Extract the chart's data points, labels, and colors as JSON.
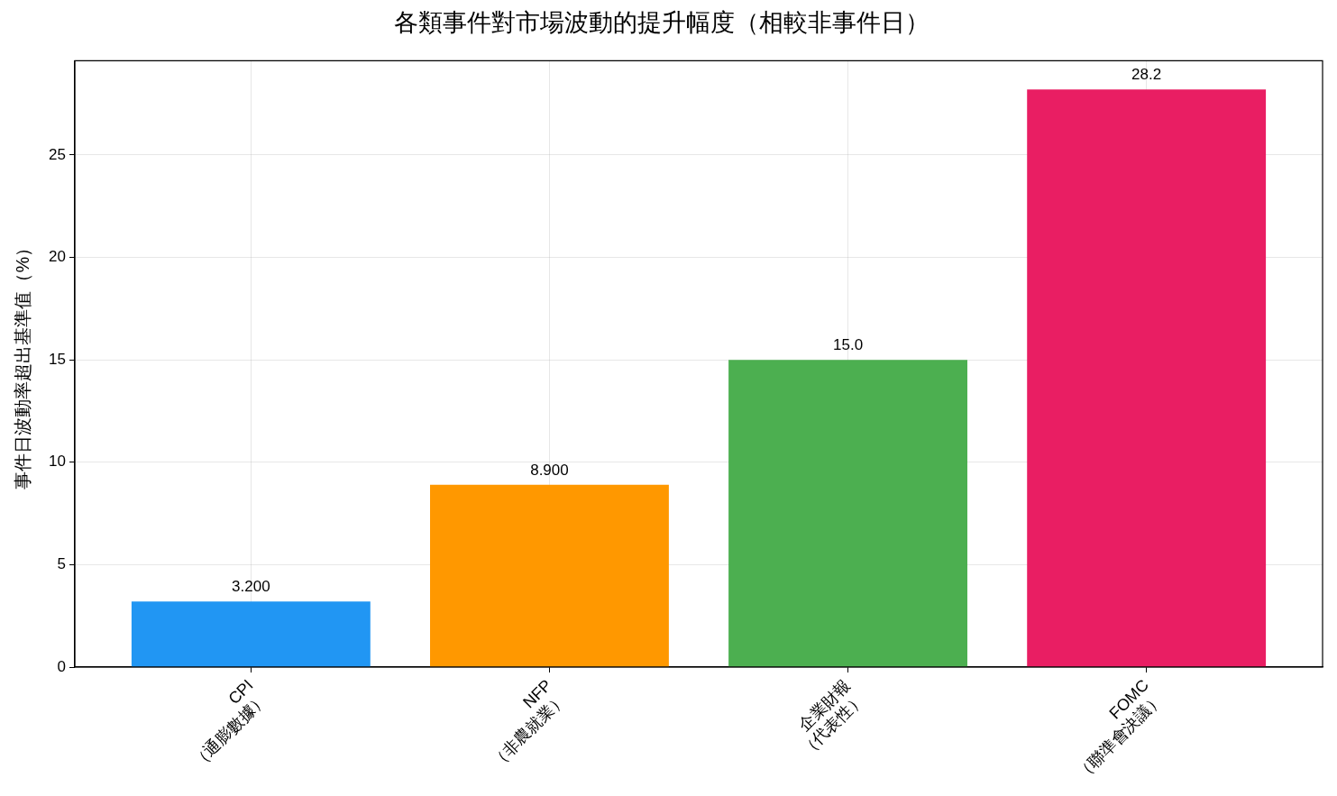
{
  "chart_data": {
    "type": "bar",
    "title": "各類事件對市場波動的提升幅度（相較非事件日）",
    "ylabel": "事件日波動率超出基準值（%）",
    "categories": [
      "CPI\n（通膨數據）",
      "NFP\n（非農就業）",
      "企業財報\n（代表性）",
      "FOMC\n（聯準會決議）"
    ],
    "values": [
      3.2,
      8.9,
      15.0,
      28.2
    ],
    "colors": [
      "#2196f3",
      "#ff9800",
      "#4caf50",
      "#e91e63"
    ],
    "value_labels": [
      "3.200",
      "8.900",
      "15.0",
      "28.2"
    ],
    "ylim": [
      0,
      29.6
    ],
    "yticks": [
      0,
      5,
      10,
      15,
      20,
      25
    ],
    "grid": true
  }
}
